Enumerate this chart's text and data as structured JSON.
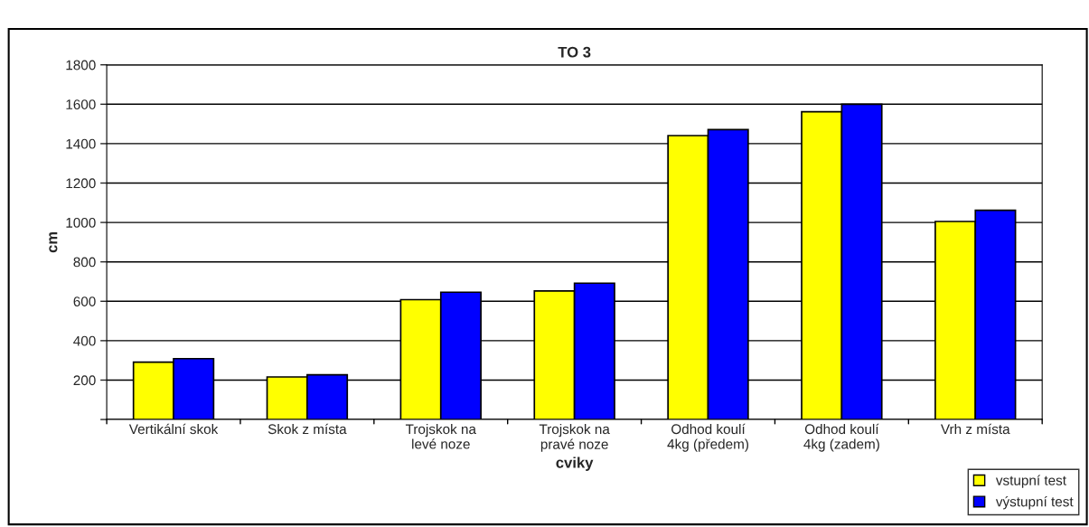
{
  "chart_data": {
    "type": "bar",
    "title": "TO 3",
    "xlabel": "cviky",
    "ylabel": "cm",
    "categories": [
      "Vertikální skok",
      "Skok z místa",
      "Trojskok na\nlevé noze",
      "Trojskok na\npravé noze",
      "Odhod koulí\n4kg (předem)",
      "Odhod koulí\n4kg (zadem)",
      "Vrh z místa"
    ],
    "series": [
      {
        "name": "vstupní test",
        "color": "#ffff00",
        "values": [
          291,
          216,
          608,
          652,
          1441,
          1562,
          1005
        ]
      },
      {
        "name": "výstupní test",
        "color": "#0000ff",
        "values": [
          309,
          227,
          646,
          692,
          1471,
          1600,
          1062
        ]
      }
    ],
    "ylim": [
      0,
      1800
    ],
    "yticks": [
      {
        "value": 0,
        "label": null
      },
      200,
      400,
      600,
      800,
      1000,
      1200,
      1400,
      1600,
      1800
    ],
    "grid": "y",
    "legend": "bottom right"
  }
}
